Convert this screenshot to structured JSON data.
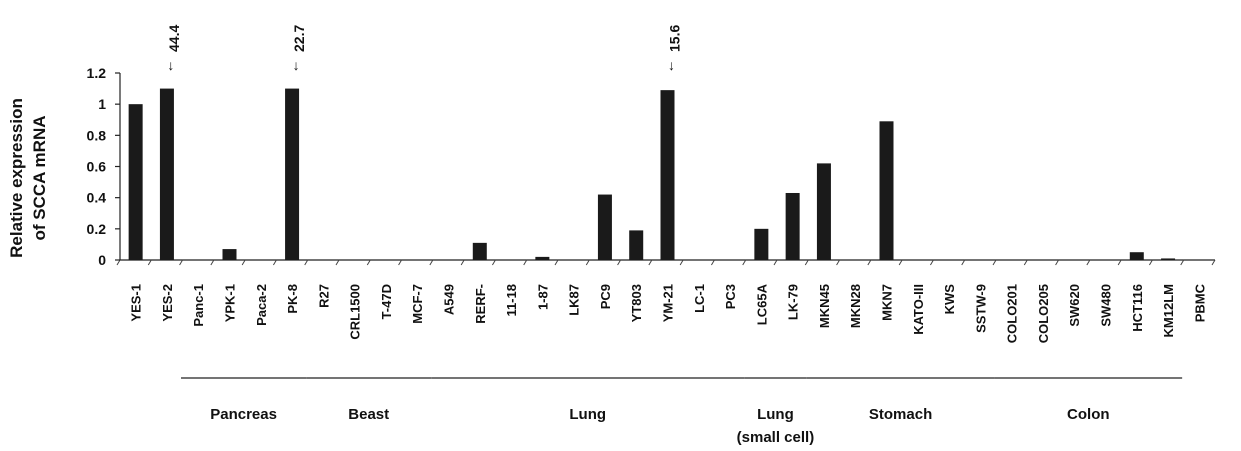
{
  "chart_data": {
    "type": "bar",
    "ylabel_lines": [
      "Relative expression",
      "of SCCA mRNA"
    ],
    "ylim": [
      0,
      1.2
    ],
    "yticks": [
      "0",
      "0.2",
      "0.4",
      "0.6",
      "0.8",
      "1",
      "1.2"
    ],
    "categories": [
      "YES-1",
      "YES-2",
      "Panc-1",
      "YPK-1",
      "Paca-2",
      "PK-8",
      "R27",
      "CRL1500",
      "T-47D",
      "MCF-7",
      "A549",
      "RERF-",
      "11-18",
      "1-87",
      "LK87",
      "PC9",
      "YT803",
      "YM-21",
      "LC-1",
      "PC3",
      "LC65A",
      "LK-79",
      "MKN45",
      "MKN28",
      "MKN7",
      "KATO-III",
      "KWS",
      "SSTW-9",
      "COLO201",
      "COLO205",
      "SW620",
      "SW480",
      "HCT116",
      "KM12LM",
      "PBMC"
    ],
    "values": [
      1.0,
      1.1,
      0,
      0.07,
      0,
      1.1,
      0,
      0,
      0,
      0,
      0,
      0.11,
      0,
      0.02,
      0,
      0.42,
      0.19,
      1.09,
      0,
      0,
      0.2,
      0.43,
      0.62,
      0,
      0.89,
      0,
      0,
      0,
      0,
      0,
      0,
      0,
      0.05,
      0.01,
      0
    ],
    "annotations": [
      {
        "category": "YES-2",
        "text": "44.4",
        "arrow": "↓"
      },
      {
        "category": "PK-8",
        "text": "22.7",
        "arrow": "↓"
      },
      {
        "category": "YM-21",
        "text": "15.6",
        "arrow": "↓"
      }
    ],
    "groups": [
      {
        "label": "Pancreas",
        "sublabel": "",
        "start": "Panc-1",
        "end": "PK-8"
      },
      {
        "label": "Beast",
        "sublabel": "",
        "start": "R27",
        "end": "MCF-7"
      },
      {
        "label": "Lung",
        "sublabel": "",
        "start": "A549",
        "end": "PC3"
      },
      {
        "label": "Lung",
        "sublabel": "(small cell)",
        "start": "LC65A",
        "end": "LK-79"
      },
      {
        "label": "Stomach",
        "sublabel": "",
        "start": "MKN45",
        "end": "SSTW-9"
      },
      {
        "label": "Colon",
        "sublabel": "",
        "start": "COLO201",
        "end": "KM12LM"
      }
    ],
    "bar_color": "#1a1a1a",
    "grid": false
  }
}
